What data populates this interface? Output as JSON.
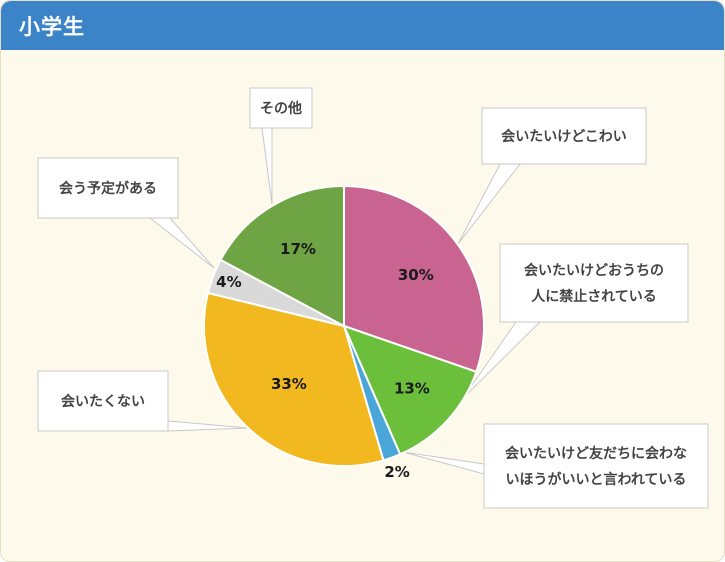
{
  "header": {
    "title": "小学生"
  },
  "chart_data": {
    "type": "pie",
    "slices": [
      {
        "label": [
          "会いたいけどこわい"
        ],
        "value": 30,
        "display": "30%",
        "color": "#c96390"
      },
      {
        "label": [
          "会いたいけどおうちの",
          "人に禁止されている"
        ],
        "value": 13,
        "display": "13%",
        "color": "#6cbf3a"
      },
      {
        "label": [
          "会いたいけど友だちに会わな",
          "いほうがいいと言われている"
        ],
        "value": 2,
        "display": "2%",
        "color": "#4aa6d8"
      },
      {
        "label": [
          "会いたくない"
        ],
        "value": 33,
        "display": "33%",
        "color": "#f2b81f"
      },
      {
        "label": [
          "会う予定がある"
        ],
        "value": 4,
        "display": "4%",
        "color": "#d9d9d9"
      },
      {
        "label": [
          "その他"
        ],
        "value": 17,
        "display": "17%",
        "color": "#6fa445"
      }
    ]
  }
}
